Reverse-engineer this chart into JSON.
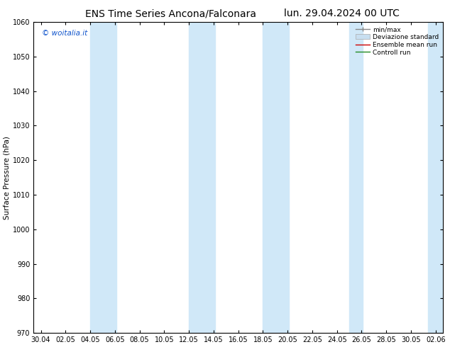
{
  "title_left": "ENS Time Series Ancona/Falconara",
  "title_right": "lun. 29.04.2024 00 UTC",
  "ylabel": "Surface Pressure (hPa)",
  "ylim": [
    970,
    1060
  ],
  "yticks": [
    970,
    980,
    990,
    1000,
    1010,
    1020,
    1030,
    1040,
    1050,
    1060
  ],
  "xlabels": [
    "30.04",
    "02.05",
    "04.05",
    "06.05",
    "08.05",
    "10.05",
    "12.05",
    "14.05",
    "16.05",
    "18.05",
    "20.05",
    "22.05",
    "24.05",
    "26.05",
    "28.05",
    "30.05",
    "02.06"
  ],
  "watermark": "© woitalia.it",
  "background_color": "#ffffff",
  "plot_bg_color": "#ffffff",
  "band_color": "#d0e8f8",
  "legend_items": [
    "min/max",
    "Deviazione standard",
    "Ensemble mean run",
    "Controll run"
  ],
  "title_fontsize": 10,
  "axis_fontsize": 7.5,
  "tick_fontsize": 7
}
